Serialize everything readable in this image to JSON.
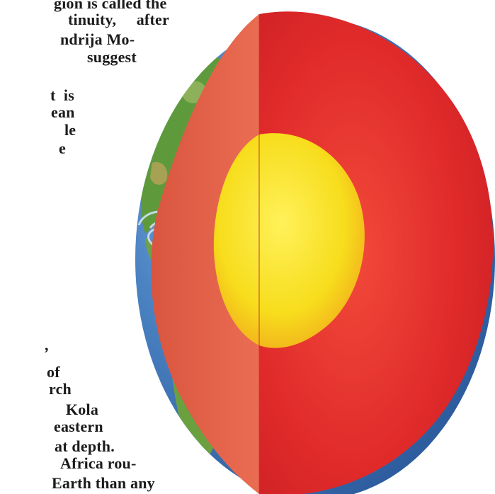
{
  "article": {
    "lines": [
      "gion is called the",
      "tinuity,     after",
      "ndrija Mo-",
      "suggest",
      "t  is",
      "ean",
      "le",
      "e",
      ",",
      "of",
      "rch",
      "Kola",
      "eastern",
      "at depth.",
      "Africa rou-",
      "Earth than any"
    ]
  },
  "illustration": {
    "subject": "earth-cross-section",
    "colors": {
      "ocean": "#3a6fb5",
      "land": "#5e9a3c",
      "crust": "#e5644a",
      "mantle": "#e02a2a",
      "core": "#f7dd1c"
    }
  }
}
